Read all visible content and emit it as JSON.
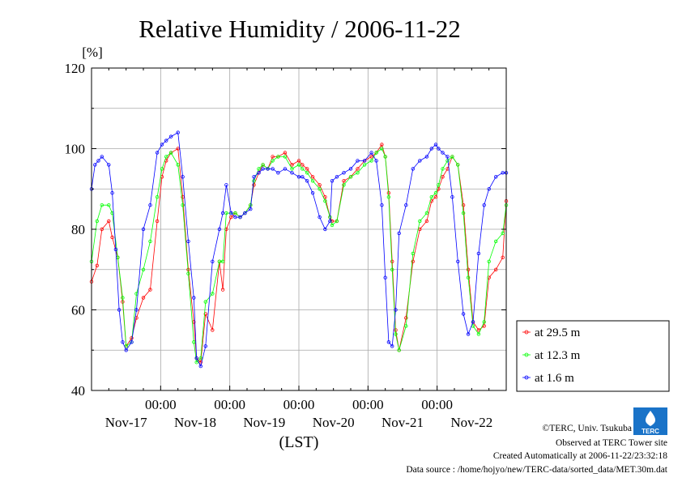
{
  "chart_data": {
    "type": "line",
    "title": "Relative Humidity / 2006-11-22",
    "ylabel": "[%]",
    "xlabel": "(LST)",
    "ylim": [
      40,
      120
    ],
    "yticks": [
      40,
      60,
      80,
      100,
      120
    ],
    "xlim": [
      0,
      6
    ],
    "x_unit": "days since Nov-17 00:00 LST minus 1 day offset",
    "day_labels": [
      "Nov-17",
      "Nov-18",
      "Nov-19",
      "Nov-20",
      "Nov-21",
      "Nov-22"
    ],
    "midnight_labels": [
      "00:00",
      "00:00",
      "00:00",
      "00:00",
      "00:00"
    ],
    "grid": true,
    "legend_position": "bottom-right",
    "series": [
      {
        "name": "at 29.5 m",
        "color": "#ff0000",
        "x": [
          0.0,
          0.08,
          0.15,
          0.25,
          0.3,
          0.38,
          0.45,
          0.5,
          0.58,
          0.65,
          0.75,
          0.85,
          0.95,
          1.02,
          1.08,
          1.15,
          1.25,
          1.32,
          1.4,
          1.48,
          1.52,
          1.58,
          1.65,
          1.75,
          1.85,
          1.9,
          1.95,
          2.02,
          2.08,
          2.15,
          2.22,
          2.3,
          2.35,
          2.42,
          2.48,
          2.55,
          2.62,
          2.7,
          2.8,
          2.9,
          3.0,
          3.05,
          3.12,
          3.2,
          3.3,
          3.38,
          3.45,
          3.48,
          3.55,
          3.65,
          3.75,
          3.85,
          3.95,
          4.05,
          4.12,
          4.2,
          4.25,
          4.3,
          4.35,
          4.4,
          4.45,
          4.55,
          4.65,
          4.75,
          4.85,
          4.92,
          4.98,
          5.02,
          5.08,
          5.15,
          5.22,
          5.3,
          5.38,
          5.45,
          5.52,
          5.6,
          5.68,
          5.75,
          5.85,
          5.95,
          6.0
        ],
        "y": [
          67,
          71,
          80,
          82,
          78,
          73,
          62,
          51,
          53,
          58,
          63,
          65,
          82,
          93,
          97,
          99,
          100,
          88,
          70,
          57,
          48,
          47,
          59,
          55,
          72,
          65,
          80,
          83,
          84,
          83,
          84,
          86,
          91,
          94,
          96,
          95,
          98,
          98,
          99,
          96,
          97,
          96,
          95,
          93,
          91,
          88,
          83,
          82,
          82,
          92,
          93,
          95,
          97,
          98,
          99,
          101,
          98,
          89,
          72,
          55,
          50,
          58,
          72,
          80,
          82,
          87,
          88,
          90,
          93,
          95,
          98,
          96,
          86,
          70,
          57,
          55,
          56,
          68,
          70,
          73,
          87
        ]
      },
      {
        "name": "at 12.3 m",
        "color": "#00ff00",
        "x": [
          0.0,
          0.08,
          0.15,
          0.25,
          0.3,
          0.38,
          0.45,
          0.5,
          0.58,
          0.65,
          0.75,
          0.85,
          0.95,
          1.02,
          1.08,
          1.15,
          1.25,
          1.32,
          1.4,
          1.48,
          1.52,
          1.58,
          1.65,
          1.75,
          1.85,
          1.9,
          1.95,
          2.02,
          2.08,
          2.15,
          2.22,
          2.3,
          2.35,
          2.42,
          2.48,
          2.55,
          2.62,
          2.7,
          2.8,
          2.9,
          3.0,
          3.05,
          3.12,
          3.2,
          3.3,
          3.38,
          3.45,
          3.48,
          3.55,
          3.65,
          3.75,
          3.85,
          3.95,
          4.05,
          4.12,
          4.2,
          4.25,
          4.3,
          4.35,
          4.4,
          4.45,
          4.55,
          4.65,
          4.75,
          4.85,
          4.92,
          4.98,
          5.02,
          5.08,
          5.15,
          5.22,
          5.3,
          5.38,
          5.45,
          5.52,
          5.6,
          5.68,
          5.75,
          5.85,
          5.95,
          6.0
        ],
        "y": [
          72,
          82,
          86,
          86,
          84,
          73,
          63,
          51,
          52,
          64,
          70,
          77,
          88,
          95,
          98,
          99,
          96,
          86,
          69,
          52,
          47,
          48,
          62,
          64,
          72,
          72,
          84,
          84,
          84,
          83,
          84,
          86,
          92,
          95,
          96,
          95,
          97,
          98,
          98,
          95,
          96,
          95,
          94,
          92,
          90,
          87,
          83,
          81,
          82,
          91,
          93,
          94,
          96,
          97,
          99,
          100,
          98,
          88,
          70,
          54,
          50,
          56,
          74,
          82,
          84,
          88,
          89,
          91,
          95,
          97,
          98,
          96,
          84,
          68,
          56,
          54,
          57,
          72,
          77,
          79,
          86
        ]
      },
      {
        "name": "at 1.6 m",
        "color": "#0000ff",
        "x": [
          0.0,
          0.05,
          0.1,
          0.15,
          0.25,
          0.3,
          0.35,
          0.4,
          0.45,
          0.5,
          0.58,
          0.65,
          0.75,
          0.85,
          0.95,
          1.02,
          1.08,
          1.15,
          1.25,
          1.32,
          1.4,
          1.48,
          1.52,
          1.58,
          1.65,
          1.75,
          1.85,
          1.9,
          1.95,
          2.02,
          2.08,
          2.15,
          2.22,
          2.3,
          2.35,
          2.42,
          2.48,
          2.55,
          2.62,
          2.7,
          2.8,
          2.9,
          3.0,
          3.05,
          3.12,
          3.2,
          3.3,
          3.38,
          3.45,
          3.48,
          3.55,
          3.65,
          3.75,
          3.85,
          3.95,
          4.05,
          4.12,
          4.2,
          4.25,
          4.3,
          4.35,
          4.4,
          4.45,
          4.55,
          4.65,
          4.75,
          4.85,
          4.92,
          4.98,
          5.02,
          5.08,
          5.15,
          5.22,
          5.3,
          5.38,
          5.45,
          5.52,
          5.6,
          5.68,
          5.75,
          5.85,
          5.95,
          6.0
        ],
        "y": [
          90,
          96,
          97,
          98,
          96,
          89,
          75,
          60,
          52,
          50,
          52,
          60,
          80,
          86,
          99,
          101,
          102,
          103,
          104,
          93,
          77,
          63,
          48,
          46,
          51,
          72,
          80,
          84,
          91,
          84,
          83,
          83,
          84,
          85,
          93,
          94,
          95,
          95,
          95,
          94,
          95,
          94,
          93,
          93,
          92,
          89,
          83,
          80,
          82,
          92,
          93,
          94,
          95,
          97,
          97,
          99,
          97,
          86,
          68,
          52,
          51,
          60,
          79,
          86,
          95,
          97,
          98,
          100,
          101,
          100,
          99,
          98,
          88,
          72,
          59,
          54,
          57,
          74,
          86,
          90,
          93,
          94,
          94
        ]
      }
    ]
  },
  "footer": {
    "copyright": "©TERC, Univ. Tsukuba",
    "observed": "Observed at TERC Tower site",
    "created": "Created Automatically at 2006-11-22/23:32:18",
    "source": "Data source : /home/hojyo/new/TERC-data/sorted_data/MET.30m.dat",
    "logo_text": "TERC"
  },
  "colors": {
    "frame": "#000000",
    "grid": "#a8a8a8",
    "logo": "#1a73c8"
  }
}
